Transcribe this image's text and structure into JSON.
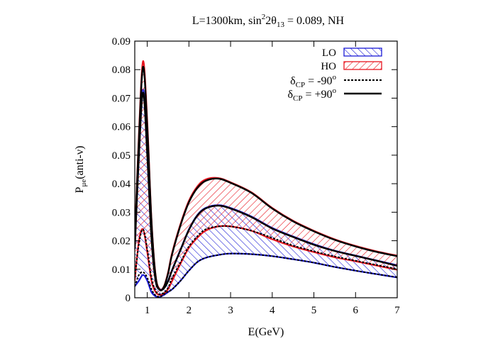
{
  "chart_data": {
    "type": "area",
    "title": {
      "prefix": "L=1300km, sin",
      "sup": "2",
      "mid": "2θ",
      "sub": "13",
      "suffix": " = 0.089, NH"
    },
    "xlabel": "E(GeV)",
    "ylabel": {
      "main": "P",
      "sub": "μe",
      "tail": "(anti-ν)"
    },
    "xlim": [
      0.7,
      7
    ],
    "ylim": [
      0,
      0.09
    ],
    "x_ticks": [
      1,
      2,
      3,
      4,
      5,
      6,
      7
    ],
    "y_ticks": [
      0,
      0.01,
      0.02,
      0.03,
      0.04,
      0.05,
      0.06,
      0.07,
      0.08,
      0.09
    ],
    "x_tick_labels": [
      "1",
      "2",
      "3",
      "4",
      "5",
      "6",
      "7"
    ],
    "y_tick_labels": [
      "0",
      "0.01",
      "0.02",
      "0.03",
      "0.04",
      "0.05",
      "0.06",
      "0.07",
      "0.08",
      "0.09"
    ],
    "grid": false,
    "legend_position": "top-right",
    "legend": {
      "lo": "LO",
      "ho": "HO",
      "dcp_minus": {
        "main": "δ",
        "sub": "CP",
        "val": " = -90",
        "sup": "o"
      },
      "dcp_plus": {
        "main": "δ",
        "sub": "CP",
        "val": " = +90",
        "sup": "o"
      }
    },
    "colors": {
      "lo": "#1a1ad6",
      "ho": "#e8141e",
      "curve": "#000000"
    },
    "x": [
      0.7,
      0.8,
      0.9,
      1.0,
      1.1,
      1.2,
      1.3,
      1.4,
      1.5,
      1.6,
      1.8,
      2.0,
      2.2,
      2.4,
      2.7,
      3.0,
      3.5,
      4.0,
      4.5,
      5.0,
      5.5,
      6.0,
      6.5,
      7.0
    ],
    "series": [
      {
        "name": "LO",
        "lower": [
          0.004,
          0.006,
          0.008,
          0.006,
          0.002,
          0.0005,
          0.0003,
          0.001,
          0.002,
          0.003,
          0.006,
          0.0095,
          0.0125,
          0.014,
          0.015,
          0.0155,
          0.0153,
          0.0146,
          0.0135,
          0.0123,
          0.0108,
          0.0095,
          0.0083,
          0.0071
        ],
        "upper": [
          0.018,
          0.052,
          0.073,
          0.052,
          0.022,
          0.006,
          0.003,
          0.0035,
          0.006,
          0.01,
          0.017,
          0.024,
          0.029,
          0.0315,
          0.0325,
          0.0315,
          0.0285,
          0.0245,
          0.0215,
          0.0188,
          0.0165,
          0.0148,
          0.0131,
          0.0114
        ]
      },
      {
        "name": "HO",
        "lower": [
          0.006,
          0.02,
          0.024,
          0.016,
          0.006,
          0.002,
          0.001,
          0.0015,
          0.003,
          0.006,
          0.012,
          0.0175,
          0.021,
          0.0235,
          0.025,
          0.025,
          0.0235,
          0.0205,
          0.018,
          0.016,
          0.0142,
          0.0128,
          0.0113,
          0.0098
        ],
        "upper": [
          0.02,
          0.058,
          0.083,
          0.062,
          0.028,
          0.008,
          0.003,
          0.004,
          0.009,
          0.016,
          0.026,
          0.034,
          0.039,
          0.0415,
          0.042,
          0.0405,
          0.037,
          0.0315,
          0.027,
          0.0235,
          0.0205,
          0.0182,
          0.0163,
          0.0148
        ]
      },
      {
        "name": "δCP = -90°",
        "style": "dashed",
        "segments": [
          [
            0.004,
            0.008,
            0.009,
            0.007,
            0.003,
            0.0008,
            0.0004,
            0.0012,
            0.0022,
            0.003,
            0.006,
            0.0095,
            0.0125,
            0.014,
            0.015,
            0.0155,
            0.0153,
            0.0146,
            0.0135,
            0.0123,
            0.0108,
            0.0095,
            0.0083,
            0.0072
          ],
          [
            0.007,
            0.019,
            0.024,
            0.017,
            0.007,
            0.0025,
            0.0012,
            0.0018,
            0.0035,
            0.007,
            0.0125,
            0.018,
            0.0215,
            0.024,
            0.025,
            0.025,
            0.0235,
            0.021,
            0.0183,
            0.0163,
            0.0145,
            0.013,
            0.0115,
            0.0101
          ]
        ]
      },
      {
        "name": "δCP = +90°",
        "style": "solid",
        "segments": [
          [
            0.017,
            0.05,
            0.072,
            0.05,
            0.021,
            0.006,
            0.0028,
            0.0033,
            0.0058,
            0.0098,
            0.0168,
            0.0238,
            0.0288,
            0.0313,
            0.0323,
            0.0313,
            0.0283,
            0.0243,
            0.0213,
            0.0186,
            0.0164,
            0.0147,
            0.013,
            0.0112
          ],
          [
            0.019,
            0.056,
            0.081,
            0.06,
            0.027,
            0.0075,
            0.0028,
            0.0038,
            0.0085,
            0.0155,
            0.0255,
            0.0335,
            0.0385,
            0.041,
            0.0418,
            0.0403,
            0.0368,
            0.0313,
            0.0268,
            0.0233,
            0.0203,
            0.018,
            0.0161,
            0.0146
          ]
        ]
      }
    ]
  }
}
